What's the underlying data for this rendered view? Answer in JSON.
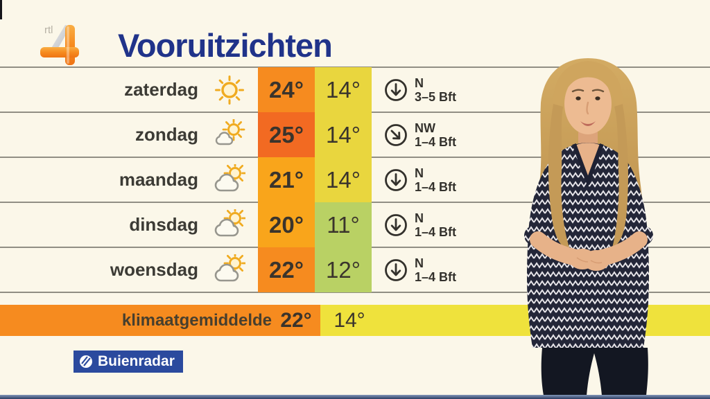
{
  "header": {
    "title": "Vooruitzichten"
  },
  "branding": {
    "rtl_text": "rtl",
    "rtl_number": "4",
    "buienradar_label": "Buienradar",
    "buienradar_blue": "#2b4a9e",
    "title_blue": "#20338a"
  },
  "colors": {
    "background_cream": "#fbf7e9",
    "gridline_gray": "#7d7b72",
    "text_dark": "#3a342c"
  },
  "forecast": {
    "rows": [
      {
        "day": "zaterdag",
        "icon": "sun",
        "high": "24°",
        "low": "14°",
        "high_color": "#f68b1f",
        "low_color": "#e9d63e",
        "wind_dir": "N",
        "wind_force": "3–5 Bft",
        "wind_rotation": 0
      },
      {
        "day": "zondag",
        "icon": "sun-small-cloud",
        "high": "25°",
        "low": "14°",
        "high_color": "#f26a22",
        "low_color": "#e9d63e",
        "wind_dir": "NW",
        "wind_force": "1–4 Bft",
        "wind_rotation": -45
      },
      {
        "day": "maandag",
        "icon": "cloud-sun",
        "high": "21°",
        "low": "14°",
        "high_color": "#f9a51b",
        "low_color": "#e9d63e",
        "wind_dir": "N",
        "wind_force": "1–4 Bft",
        "wind_rotation": 0
      },
      {
        "day": "dinsdag",
        "icon": "cloud-sun",
        "high": "20°",
        "low": "11°",
        "high_color": "#f9a51b",
        "low_color": "#b9d164",
        "wind_dir": "N",
        "wind_force": "1–4 Bft",
        "wind_rotation": 0
      },
      {
        "day": "woensdag",
        "icon": "cloud-sun",
        "high": "22°",
        "low": "12°",
        "high_color": "#f68b1f",
        "low_color": "#b9d164",
        "wind_dir": "N",
        "wind_force": "1–4 Bft",
        "wind_rotation": 0
      }
    ],
    "climate": {
      "label": "klimaatgemiddelde",
      "high": "22°",
      "low": "14°",
      "orange": "#f68b1f",
      "yellow": "#efe23c"
    }
  }
}
